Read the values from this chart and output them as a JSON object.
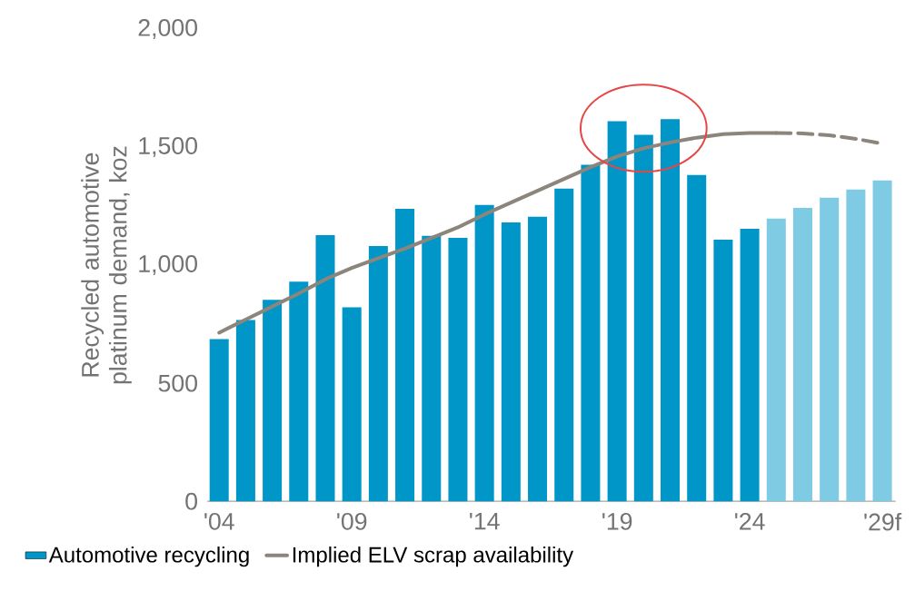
{
  "chart_data": {
    "type": "bar",
    "ylabel": "Recycled automotive platinum demand, koz",
    "categories": [
      "'04",
      null,
      null,
      null,
      null,
      "'09",
      null,
      null,
      null,
      null,
      "'14",
      null,
      null,
      null,
      null,
      "'19",
      null,
      null,
      null,
      null,
      "'24",
      null,
      null,
      null,
      null,
      "'29f"
    ],
    "series": [
      {
        "name": "Automotive recycling",
        "color": "#0096c8",
        "colors": [
          "#0096c8",
          "#0096c8",
          "#0096c8",
          "#0096c8",
          "#0096c8",
          "#0096c8",
          "#0096c8",
          "#0096c8",
          "#0096c8",
          "#0096c8",
          "#0096c8",
          "#0096c8",
          "#0096c8",
          "#0096c8",
          "#0096c8",
          "#0096c8",
          "#0096c8",
          "#0096c8",
          "#0096c8",
          "#0096c8",
          "#0096c8",
          "#7fcbe3",
          "#7fcbe3",
          "#7fcbe3",
          "#7fcbe3",
          "#7fcbe3"
        ],
        "values": [
          687,
          768,
          853,
          930,
          1127,
          822,
          1081,
          1239,
          1124,
          1116,
          1255,
          1181,
          1205,
          1324,
          1425,
          1610,
          1552,
          1618,
          1382,
          1108,
          1154,
          1197,
          1243,
          1286,
          1320,
          1359
        ]
      },
      {
        "name": "Implied ELV scrap availability",
        "type": "line",
        "color": "#8c857b",
        "line_style": "solid",
        "values": [
          714,
          770,
          825,
          880,
          940,
          988,
          1030,
          1070,
          1115,
          1160,
          1215,
          1265,
          1315,
          1365,
          1415,
          1460,
          1495,
          1520,
          1540,
          1555,
          1560,
          1560,
          null,
          null,
          null,
          null
        ]
      },
      {
        "type": "line",
        "color": "#8c857b",
        "line_style": "dashed",
        "values": [
          null,
          null,
          null,
          null,
          null,
          null,
          null,
          null,
          null,
          null,
          null,
          null,
          null,
          null,
          null,
          null,
          null,
          null,
          null,
          null,
          null,
          1560,
          1558,
          1550,
          1535,
          1515
        ]
      }
    ],
    "ylim": [
      0,
      2000
    ],
    "yticks": [
      0,
      500,
      {
        "value": 1000,
        "label": "1,000"
      },
      {
        "value": 1500,
        "label": "1,500"
      },
      {
        "value": 2000,
        "label": "2,000"
      }
    ],
    "grid": false,
    "legend": "bottom",
    "marker": "none"
  }
}
